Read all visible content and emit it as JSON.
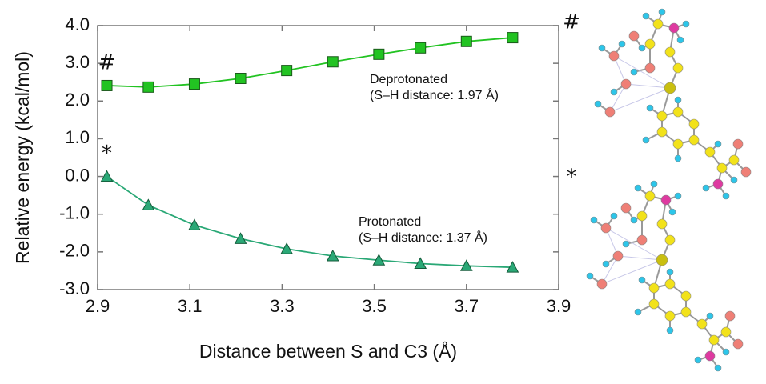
{
  "chart_data": {
    "type": "line",
    "xlabel": "Distance between S and C3 (Å)",
    "ylabel": "Relative energy (kcal/mol)",
    "x": [
      2.92,
      3.01,
      3.11,
      3.21,
      3.31,
      3.41,
      3.51,
      3.6,
      3.7,
      3.8
    ],
    "series": [
      {
        "name": "Deprotonated",
        "note": "(S–H distance: 1.97 Å)",
        "color": "#22c322",
        "marker": "square",
        "values": [
          2.41,
          2.37,
          2.45,
          2.6,
          2.81,
          3.04,
          3.24,
          3.41,
          3.58,
          3.68
        ]
      },
      {
        "name": "Protonated",
        "note": "(S–H distance: 1.37 Å)",
        "color": "#2aa876",
        "marker": "triangle",
        "values": [
          0.0,
          -0.76,
          -1.29,
          -1.65,
          -1.92,
          -2.11,
          -2.22,
          -2.31,
          -2.37,
          -2.41
        ]
      }
    ],
    "xlim": [
      2.9,
      3.9
    ],
    "xticks": [
      2.9,
      3.1,
      3.3,
      3.5,
      3.7,
      3.9
    ],
    "ylim": [
      -3,
      4
    ],
    "yticks": [
      {
        "value": -3,
        "label": "-3.0"
      },
      {
        "value": -2,
        "label": "-2.0"
      },
      {
        "value": -1,
        "label": "-1.0"
      },
      {
        "value": 0,
        "label": "0.0"
      },
      {
        "value": 1,
        "label": "1.0"
      },
      {
        "value": 2,
        "label": "2.0"
      },
      {
        "value": 3,
        "label": "3.0"
      },
      {
        "value": 4,
        "label": "4.0"
      }
    ],
    "annotations": [
      {
        "text": "#"
      },
      {
        "text": "*"
      }
    ],
    "structure_labels": [
      {
        "text": "#"
      },
      {
        "text": "*"
      }
    ]
  }
}
